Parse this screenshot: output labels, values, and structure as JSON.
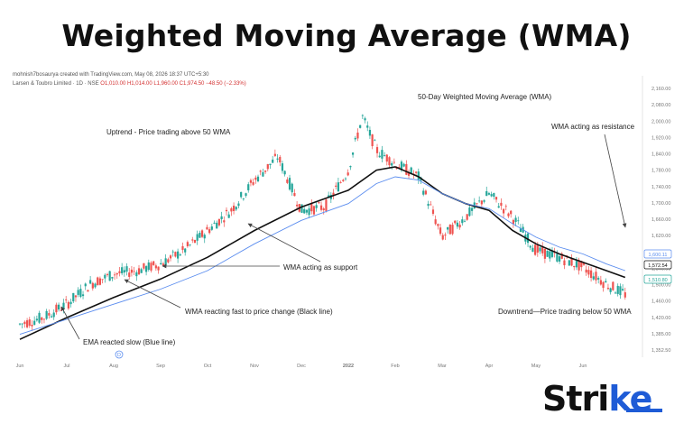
{
  "page_title": "Weighted Moving Average (WMA)",
  "chart_credit": "mohnish7bosaurya created with TradingView.com, May 08, 2026 18:37 UTC+5:30",
  "symbol_info": "Larsen & Toubro Limited · 1D · NSE",
  "ohlc_readout": "O1,010.00  H1,014.00  L1,960.00  C1,974.50  −48.50 (−2.33%)",
  "brand": {
    "main": "Stri",
    "accent": "ke"
  },
  "colors": {
    "up_candle": "#26a69a",
    "down_candle": "#ef5350",
    "wma_line": "#111111",
    "ema_line": "#5b8def",
    "annotation_arrow": "#444444"
  },
  "chart_data": {
    "type": "line",
    "title": "50-Day Weighted Moving Average (WMA)",
    "xlabel": "",
    "ylabel": "",
    "x_tick_labels": [
      "Jun",
      "Jul",
      "Aug",
      "Sep",
      "Oct",
      "Nov",
      "Dec",
      "2022",
      "Feb",
      "Mar",
      "Apr",
      "May",
      "Jun"
    ],
    "x_tick_positions_month_index": [
      0,
      1,
      2,
      3,
      4,
      5,
      6,
      7,
      8,
      9,
      10,
      11,
      12
    ],
    "y_tick_labels": [
      "2,160.00",
      "2,080.00",
      "2,000.00",
      "1,920.00",
      "1,840.00",
      "1,780.00",
      "1,740.00",
      "1,700.00",
      "1,660.00",
      "1,620.00",
      "1,580.00",
      "1,540.00",
      "1,500.00",
      "1,460.00",
      "1,420.00",
      "1,385.00",
      "1,352.50"
    ],
    "price_badges": [
      {
        "label": "1,600.11",
        "style": "blue"
      },
      {
        "label": "1,572.54",
        "style": "black"
      },
      {
        "label": "1,510.80",
        "style": "green"
      }
    ],
    "price_path_month_index": [
      0,
      0.5,
      1,
      1.5,
      2,
      2.5,
      3,
      3.5,
      4,
      4.5,
      5,
      5.5,
      6,
      6.5,
      7,
      7.3,
      7.6,
      8,
      8.5,
      9,
      9.5,
      10,
      10.5,
      11,
      11.5,
      12,
      12.5,
      12.9
    ],
    "price_path_values": [
      1440,
      1460,
      1500,
      1560,
      1590,
      1600,
      1620,
      1660,
      1720,
      1780,
      1870,
      1940,
      1780,
      1790,
      1900,
      2060,
      1960,
      1920,
      1880,
      1700,
      1760,
      1830,
      1760,
      1660,
      1640,
      1610,
      1560,
      1530
    ],
    "series": [
      {
        "name": "50 WMA",
        "x_month_index": [
          0,
          1,
          2,
          3,
          4,
          5,
          6,
          7,
          7.6,
          8,
          8.5,
          9,
          9.5,
          10,
          10.5,
          11,
          11.5,
          12,
          12.5,
          12.9
        ],
        "values": [
          1395,
          1460,
          1520,
          1575,
          1640,
          1720,
          1790,
          1840,
          1900,
          1910,
          1880,
          1830,
          1800,
          1780,
          1720,
          1680,
          1650,
          1625,
          1600,
          1580
        ]
      },
      {
        "name": "EMA",
        "x_month_index": [
          0,
          1,
          2,
          3,
          4,
          5,
          6,
          7,
          7.6,
          8,
          8.5,
          9,
          9.5,
          10,
          10.5,
          11,
          11.5,
          12,
          12.5,
          12.9
        ],
        "values": [
          1410,
          1455,
          1500,
          1545,
          1600,
          1680,
          1750,
          1800,
          1860,
          1880,
          1870,
          1830,
          1800,
          1785,
          1740,
          1700,
          1670,
          1650,
          1620,
          1600
        ]
      }
    ],
    "annotations": [
      {
        "text": "50-Day Weighted Moving Average (WMA)"
      },
      {
        "text": "Uptrend - Price trading above 50 WMA"
      },
      {
        "text": "WMA acting as resistance"
      },
      {
        "text": "WMA acting as support"
      },
      {
        "text": "WMA reacting fast to price change (Black line)"
      },
      {
        "text": "Downtrend—Price trading below 50 WMA"
      },
      {
        "text": "EMA reacted slow (Blue line)"
      }
    ],
    "bottom_marker": "D"
  }
}
